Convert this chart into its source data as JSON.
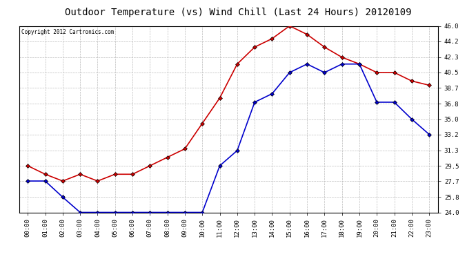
{
  "title": "Outdoor Temperature (vs) Wind Chill (Last 24 Hours) 20120109",
  "copyright_text": "Copyright 2012 Cartronics.com",
  "x_labels": [
    "00:00",
    "01:00",
    "02:00",
    "03:00",
    "04:00",
    "05:00",
    "06:00",
    "07:00",
    "08:00",
    "09:00",
    "10:00",
    "11:00",
    "12:00",
    "13:00",
    "14:00",
    "15:00",
    "16:00",
    "17:00",
    "18:00",
    "19:00",
    "20:00",
    "21:00",
    "22:00",
    "23:00"
  ],
  "temp_data": [
    29.5,
    28.5,
    27.7,
    28.5,
    27.7,
    28.5,
    28.5,
    29.5,
    30.5,
    31.5,
    34.5,
    37.5,
    41.5,
    43.5,
    44.5,
    46.0,
    45.0,
    43.5,
    42.3,
    41.5,
    40.5,
    40.5,
    39.5,
    39.0
  ],
  "windchill_data": [
    27.7,
    27.7,
    25.8,
    24.0,
    24.0,
    24.0,
    24.0,
    24.0,
    24.0,
    24.0,
    24.0,
    29.5,
    31.3,
    37.0,
    38.0,
    40.5,
    41.5,
    40.5,
    41.5,
    41.5,
    37.0,
    37.0,
    35.0,
    33.2
  ],
  "temp_color": "#cc0000",
  "windchill_color": "#0000cc",
  "marker": "D",
  "marker_size": 3,
  "ylim_min": 24.0,
  "ylim_max": 46.0,
  "yticks": [
    24.0,
    25.8,
    27.7,
    29.5,
    31.3,
    33.2,
    35.0,
    36.8,
    38.7,
    40.5,
    42.3,
    44.2,
    46.0
  ],
  "background_color": "#ffffff",
  "plot_bg_color": "#ffffff",
  "grid_color": "#bbbbbb",
  "title_fontsize": 10,
  "tick_fontsize": 6.5,
  "line_width": 1.2
}
